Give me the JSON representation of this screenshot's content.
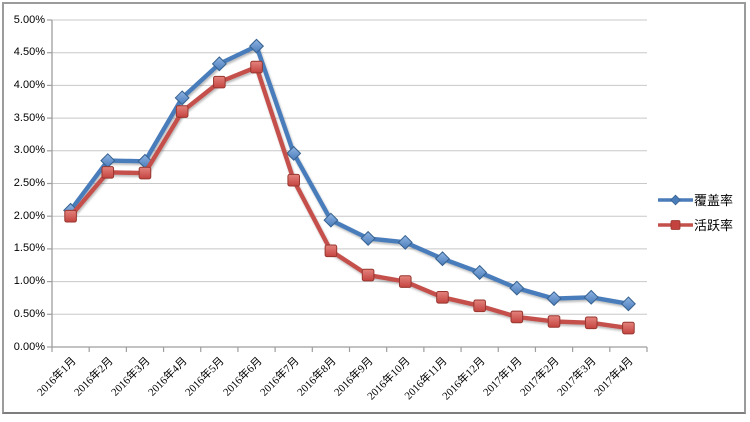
{
  "chart_data": {
    "type": "line",
    "title": "",
    "xlabel": "",
    "ylabel": "",
    "categories": [
      "2016年1月",
      "2016年2月",
      "2016年3月",
      "2016年4月",
      "2016年5月",
      "2016年6月",
      "2016年7月",
      "2016年8月",
      "2016年9月",
      "2016年10月",
      "2016年11月",
      "2016年12月",
      "2017年1月",
      "2017年2月",
      "2017年3月",
      "2017年4月"
    ],
    "series": [
      {
        "name": "覆盖率",
        "marker": "diamond",
        "line_color": "#4a7cba",
        "marker_fill_light": "#8fb4e3",
        "marker_fill_dark": "#4a7cba",
        "marker_stroke": "#36618f",
        "values": [
          2.09,
          2.85,
          2.84,
          3.81,
          4.33,
          4.6,
          2.96,
          1.94,
          1.66,
          1.6,
          1.35,
          1.14,
          0.9,
          0.74,
          0.76,
          0.66
        ]
      },
      {
        "name": "活跃率",
        "marker": "square",
        "line_color": "#c4504c",
        "marker_fill_light": "#e4837d",
        "marker_fill_dark": "#c4433f",
        "marker_stroke": "#97362f",
        "values": [
          2.0,
          2.67,
          2.66,
          3.6,
          4.05,
          4.28,
          2.55,
          1.47,
          1.1,
          1.0,
          0.76,
          0.63,
          0.46,
          0.39,
          0.37,
          0.29
        ]
      }
    ],
    "ylim": [
      0,
      5
    ],
    "y_tick_step": 0.5,
    "y_tick_labels": [
      "0.00%",
      "0.50%",
      "1.00%",
      "1.50%",
      "2.00%",
      "2.50%",
      "3.00%",
      "3.50%",
      "4.00%",
      "4.50%",
      "5.00%"
    ],
    "grid": true,
    "legend_position": "right",
    "grid_color": "#c8c8c8",
    "axis_color": "#9e9e9e"
  }
}
